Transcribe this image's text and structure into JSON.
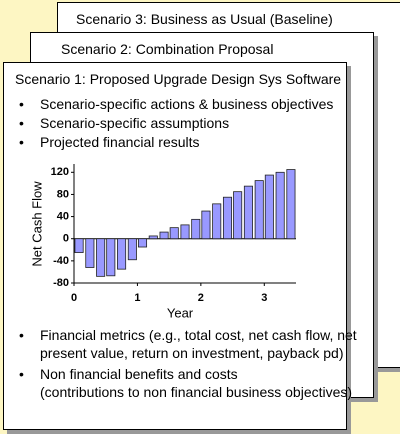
{
  "cards": [
    {
      "title": "Scenario 3: Business as Usual (Baseline)"
    },
    {
      "title": "Scenario 2: Combination Proposal"
    },
    {
      "title": "Scenario 1: Proposed Upgrade Design Sys Software",
      "bullets": [
        "Scenario-specific actions & business objectives",
        "Scenario-specific assumptions",
        "Projected financial results"
      ],
      "bottom_bullets": [
        {
          "lines": [
            "Financial metrics (e.g., total cost, net cash flow, net",
            "present value, return on investment, payback pd)"
          ]
        },
        {
          "lines": [
            "Non financial benefits and costs",
            "(contributions to non financial business objectives)"
          ]
        }
      ]
    }
  ],
  "chart_data": {
    "type": "bar",
    "xlabel": "Year",
    "ylabel": "Net Cash Flow",
    "x": [
      0.08,
      0.25,
      0.42,
      0.58,
      0.75,
      0.92,
      1.08,
      1.25,
      1.42,
      1.58,
      1.75,
      1.92,
      2.08,
      2.25,
      2.42,
      2.58,
      2.75,
      2.92,
      3.08,
      3.25,
      3.42
    ],
    "values": [
      -25,
      -52,
      -68,
      -67,
      -55,
      -38,
      -15,
      5,
      12,
      20,
      25,
      35,
      50,
      63,
      75,
      85,
      95,
      105,
      115,
      120,
      125
    ],
    "color": "#9999ff",
    "xlim": [
      0,
      3.5
    ],
    "xticks": [
      0,
      1,
      2,
      3
    ],
    "ylim": [
      -80,
      135
    ],
    "yticks": [
      -80,
      -40,
      0,
      40,
      80,
      120
    ]
  }
}
